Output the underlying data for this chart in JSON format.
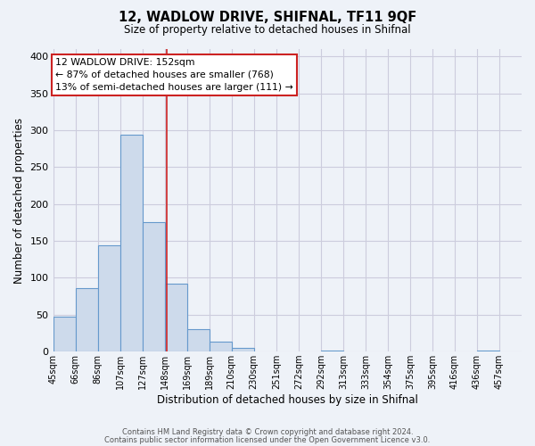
{
  "title": "12, WADLOW DRIVE, SHIFNAL, TF11 9QF",
  "subtitle": "Size of property relative to detached houses in Shifnal",
  "xlabel": "Distribution of detached houses by size in Shifnal",
  "ylabel": "Number of detached properties",
  "bin_labels": [
    "45sqm",
    "66sqm",
    "86sqm",
    "107sqm",
    "127sqm",
    "148sqm",
    "169sqm",
    "189sqm",
    "210sqm",
    "230sqm",
    "251sqm",
    "272sqm",
    "292sqm",
    "313sqm",
    "333sqm",
    "354sqm",
    "375sqm",
    "395sqm",
    "416sqm",
    "436sqm",
    "457sqm"
  ],
  "bar_heights": [
    47,
    86,
    144,
    294,
    175,
    92,
    30,
    14,
    5,
    0,
    0,
    0,
    2,
    0,
    0,
    0,
    0,
    0,
    0,
    2,
    0
  ],
  "bar_color": "#cddaeb",
  "bar_edge_color": "#6699cc",
  "property_line_label": "12 WADLOW DRIVE: 152sqm",
  "annotation_line1": "← 87% of detached houses are smaller (768)",
  "annotation_line2": "13% of semi-detached houses are larger (111) →",
  "annotation_box_color": "#ffffff",
  "annotation_box_edge": "#cc2222",
  "property_line_color": "#cc2222",
  "ylim": [
    0,
    410
  ],
  "bin_width": 21,
  "footnote1": "Contains HM Land Registry data © Crown copyright and database right 2024.",
  "footnote2": "Contains public sector information licensed under the Open Government Licence v3.0.",
  "background_color": "#eef2f8",
  "grid_color": "#ccccdd",
  "yticks": [
    0,
    50,
    100,
    150,
    200,
    250,
    300,
    350,
    400
  ]
}
